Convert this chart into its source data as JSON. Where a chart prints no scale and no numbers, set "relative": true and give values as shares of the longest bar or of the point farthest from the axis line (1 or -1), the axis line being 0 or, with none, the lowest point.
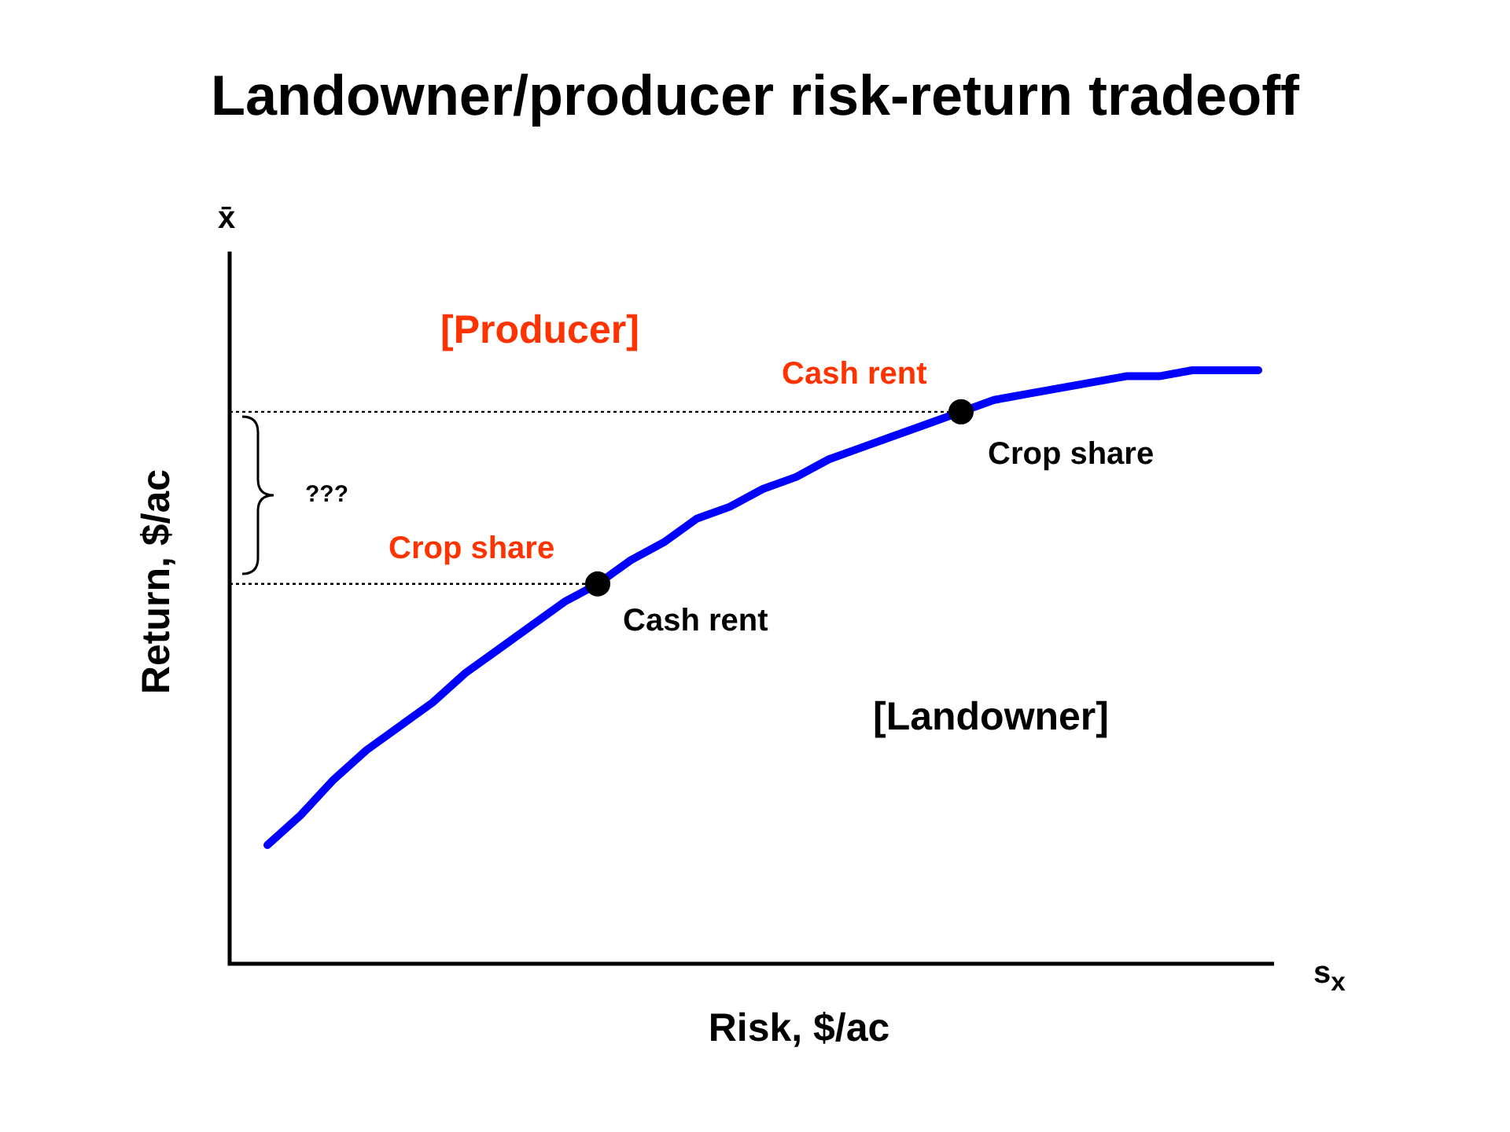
{
  "chart_data": {
    "type": "line",
    "title": "Landowner/producer risk-return tradeoff",
    "xlabel": "Risk, $/ac",
    "ylabel": "Return, $/ac",
    "relative": true,
    "legend": false,
    "grid": false,
    "categories": [
      null,
      null,
      null,
      null,
      null,
      null,
      null,
      null,
      null,
      null,
      null,
      null,
      null,
      null,
      null,
      null,
      null,
      null,
      null,
      null,
      null,
      null,
      null,
      null,
      null,
      null,
      null,
      null,
      null,
      null,
      null
    ],
    "series": [
      {
        "type": "line",
        "color": "#0000ff",
        "marker": "none",
        "values": [
          0.2,
          0.25,
          0.31,
          0.36,
          0.4,
          0.44,
          0.49,
          0.53,
          0.57,
          0.61,
          0.64,
          0.68,
          0.71,
          0.75,
          0.77,
          0.8,
          0.82,
          0.85,
          0.87,
          0.89,
          0.91,
          0.93,
          0.95,
          0.96,
          0.97,
          0.98,
          0.99,
          0.99,
          1.0,
          1.0,
          1.0
        ]
      }
    ],
    "ref_lines": [
      {
        "axis": "y",
        "value": 0.64,
        "color": "#000000",
        "line_style": "dotted"
      },
      {
        "axis": "y",
        "value": 0.93,
        "color": "#000000",
        "line_style": "dotted"
      }
    ],
    "annotations": [
      "x̄",
      "s$_{x}$",
      "[Producer]",
      "[Landowner]",
      "Cash rent",
      "Crop share",
      "Crop share",
      "Cash rent",
      "???"
    ]
  }
}
